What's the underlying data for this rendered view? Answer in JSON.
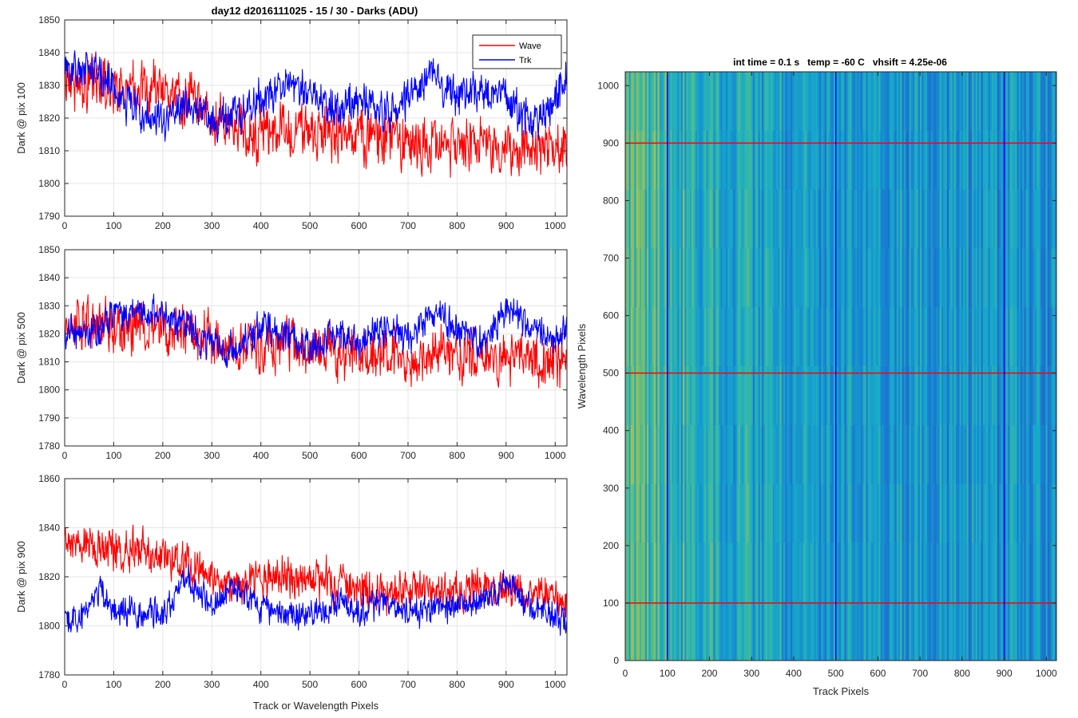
{
  "figure": {
    "suptitle": "day12 d2016111025 - 15 / 30 - Darks (ADU)",
    "colors": {
      "wave": "#ff0000",
      "trk": "#0000ff",
      "grid": "#e6e6e6",
      "axis": "#262626"
    }
  },
  "chart_data": [
    {
      "type": "line",
      "title": "",
      "xlabel": "",
      "ylabel": "Dark @ pix 100",
      "xlim": [
        0,
        1024
      ],
      "ylim": [
        1790,
        1850
      ],
      "xticks": [
        0,
        100,
        200,
        300,
        400,
        500,
        600,
        700,
        800,
        900,
        1000
      ],
      "yticks": [
        1790,
        1800,
        1810,
        1820,
        1830,
        1840,
        1850
      ],
      "grid": true,
      "legend": {
        "position": "top-right",
        "entries": [
          "Wave",
          "Trk"
        ]
      },
      "series": [
        {
          "name": "Wave",
          "color": "#ff0000",
          "trend": {
            "x": [
              0,
              100,
              200,
              260,
              300,
              400,
              500,
              600,
              700,
              800,
              900,
              1000,
              1024
            ],
            "y": [
              1832,
              1830,
              1828,
              1825,
              1818,
              1815,
              1816,
              1815,
              1813,
              1812,
              1811,
              1810,
              1812
            ]
          },
          "noise": 7,
          "range": [
            1793,
            1849
          ]
        },
        {
          "name": "Trk",
          "color": "#0000ff",
          "trend": {
            "x": [
              0,
              50,
              100,
              150,
              200,
              250,
              300,
              350,
              400,
              450,
              500,
              550,
              600,
              650,
              700,
              750,
              800,
              850,
              900,
              950,
              1000,
              1024
            ],
            "y": [
              1834,
              1836,
              1829,
              1822,
              1818,
              1824,
              1819,
              1820,
              1826,
              1830,
              1828,
              1822,
              1827,
              1821,
              1826,
              1833,
              1826,
              1829,
              1827,
              1818,
              1826,
              1833
            ]
          },
          "noise": 5,
          "range": [
            1812,
            1847
          ]
        }
      ]
    },
    {
      "type": "line",
      "title": "",
      "xlabel": "",
      "ylabel": "Dark @ pix 500",
      "xlim": [
        0,
        1024
      ],
      "ylim": [
        1780,
        1850
      ],
      "xticks": [
        0,
        100,
        200,
        300,
        400,
        500,
        600,
        700,
        800,
        900,
        1000
      ],
      "yticks": [
        1780,
        1790,
        1800,
        1810,
        1820,
        1830,
        1840,
        1850
      ],
      "grid": true,
      "series": [
        {
          "name": "Wave",
          "color": "#ff0000",
          "trend": {
            "x": [
              0,
              100,
              200,
              280,
              350,
              450,
              550,
              650,
              750,
              850,
              950,
              1024
            ],
            "y": [
              1825,
              1823,
              1822,
              1820,
              1815,
              1816,
              1814,
              1812,
              1813,
              1811,
              1812,
              1812
            ]
          },
          "noise": 8,
          "range": [
            1787,
            1848
          ]
        },
        {
          "name": "Trk",
          "color": "#0000ff",
          "trend": {
            "x": [
              0,
              50,
              100,
              150,
              200,
              250,
              300,
              350,
              400,
              450,
              500,
              550,
              600,
              650,
              700,
              750,
              800,
              850,
              900,
              950,
              1000,
              1024
            ],
            "y": [
              1822,
              1820,
              1826,
              1828,
              1826,
              1823,
              1816,
              1814,
              1822,
              1820,
              1815,
              1820,
              1818,
              1822,
              1818,
              1828,
              1822,
              1817,
              1830,
              1821,
              1818,
              1822
            ]
          },
          "noise": 5,
          "range": [
            1800,
            1843
          ]
        }
      ]
    },
    {
      "type": "line",
      "title": "",
      "xlabel": "Track or Wavelength Pixels",
      "ylabel": "Dark @ pix 900",
      "xlim": [
        0,
        1024
      ],
      "ylim": [
        1780,
        1860
      ],
      "xticks": [
        0,
        100,
        200,
        300,
        400,
        500,
        600,
        700,
        800,
        900,
        1000
      ],
      "yticks": [
        1780,
        1800,
        1820,
        1840,
        1860
      ],
      "grid": true,
      "series": [
        {
          "name": "Wave",
          "color": "#ff0000",
          "trend": {
            "x": [
              0,
              50,
              100,
              150,
              200,
              250,
              300,
              350,
              400,
              500,
              600,
              700,
              800,
              900,
              1000,
              1024
            ],
            "y": [
              1832,
              1833,
              1830,
              1830,
              1828,
              1826,
              1820,
              1815,
              1820,
              1820,
              1815,
              1815,
              1814,
              1815,
              1812,
              1812
            ]
          },
          "noise": 7,
          "range": [
            1789,
            1854
          ]
        },
        {
          "name": "Trk",
          "color": "#0000ff",
          "trend": {
            "x": [
              0,
              30,
              70,
              100,
              150,
              200,
              250,
              300,
              350,
              400,
              450,
              500,
              550,
              600,
              650,
              700,
              750,
              800,
              850,
              900,
              950,
              1000,
              1024
            ],
            "y": [
              1803,
              1802,
              1815,
              1806,
              1805,
              1806,
              1818,
              1808,
              1816,
              1808,
              1805,
              1803,
              1810,
              1806,
              1810,
              1805,
              1806,
              1808,
              1810,
              1818,
              1806,
              1805,
              1803
            ]
          },
          "noise": 5,
          "range": [
            1783,
            1835
          ]
        }
      ]
    },
    {
      "type": "heatmap",
      "title": "int time = 0.1 s   temp = -60 C   vhsift = 4.25e-06",
      "xlabel": "Track Pixels",
      "ylabel": "Wavelength Pixels",
      "xlim": [
        0,
        1024
      ],
      "ylim": [
        0,
        1024
      ],
      "xticks": [
        0,
        100,
        200,
        300,
        400,
        500,
        600,
        700,
        800,
        900,
        1000
      ],
      "yticks": [
        0,
        100,
        200,
        300,
        400,
        500,
        600,
        700,
        800,
        900,
        1000
      ],
      "colormap": "parula",
      "markers": {
        "vertical": {
          "x": [
            100,
            500,
            900
          ],
          "color": "#0000ff"
        },
        "horizontal": {
          "y": [
            100,
            500,
            900
          ],
          "color": "#ff0000"
        }
      }
    }
  ]
}
